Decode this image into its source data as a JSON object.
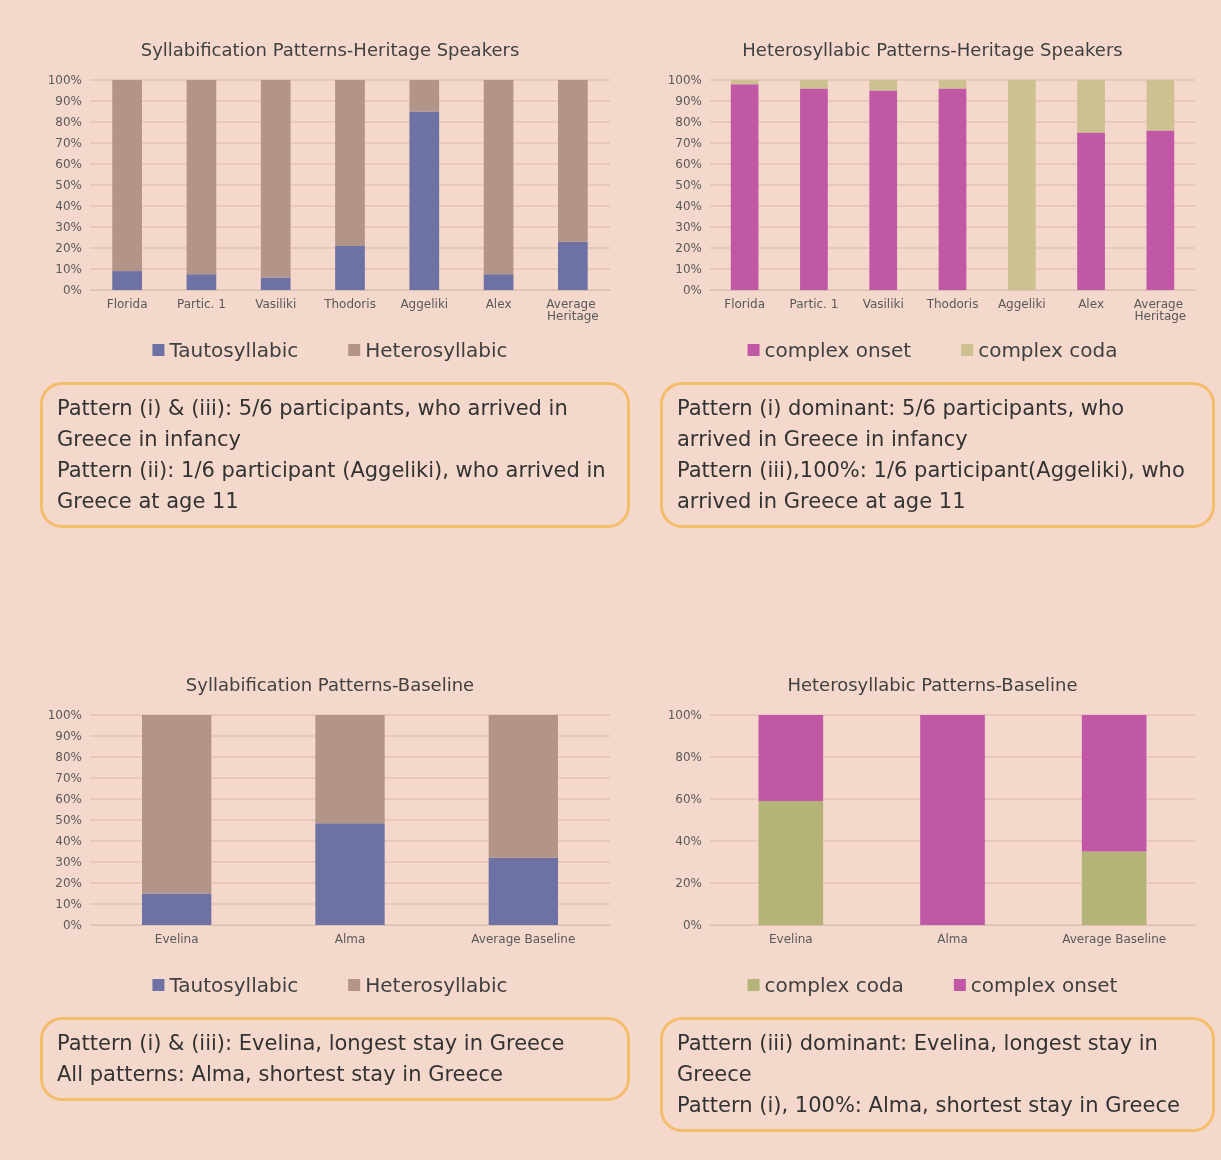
{
  "chart_data": [
    {
      "type": "bar",
      "title": "Syllabification Patterns-Heritage Speakers",
      "categories": [
        "Florida",
        "Partic. 1",
        "Vasiliki",
        "Thodoris",
        "Aggeliki",
        "Alex",
        "Average Heritage"
      ],
      "stacked": true,
      "ylim": [
        0,
        100
      ],
      "yticks": [
        {
          "value": 0,
          "label": "0%"
        },
        {
          "value": 10,
          "label": "10%"
        },
        {
          "value": 20,
          "label": "20%"
        },
        {
          "value": 30,
          "label": "30%"
        },
        {
          "value": 40,
          "label": "40%"
        },
        {
          "value": 50,
          "label": "50%"
        },
        {
          "value": 60,
          "label": "60%"
        },
        {
          "value": 70,
          "label": "70%"
        },
        {
          "value": 80,
          "label": "80%"
        },
        {
          "value": 90,
          "label": "90%"
        },
        {
          "value": 100,
          "label": "100%"
        }
      ],
      "grid": "y",
      "legend": "bottom",
      "series": [
        {
          "name": "Tautosyllabic",
          "color": "#6e71a3",
          "values": [
            9,
            7.5,
            6,
            21,
            85,
            7.5,
            23
          ]
        },
        {
          "name": "Heterosyllabic",
          "color": "#b39488",
          "values": [
            91,
            92.5,
            94,
            79,
            15,
            92.5,
            77
          ]
        }
      ],
      "annotations": [
        "Pattern (i) & (iii): 5/6 participants, who arrived in Greece in infancy",
        "Pattern (ii): 1/6 participant (Aggeliki), who arrived in Greece at age 11"
      ]
    },
    {
      "type": "bar",
      "title": "Heterosyllabic Patterns-Heritage Speakers",
      "categories": [
        "Florida",
        "Partic. 1",
        "Vasiliki",
        "Thodoris",
        "Aggeliki",
        "Alex",
        "Average Heritage"
      ],
      "stacked": true,
      "ylim": [
        0,
        100
      ],
      "yticks": [
        {
          "value": 0,
          "label": "0%"
        },
        {
          "value": 10,
          "label": "10%"
        },
        {
          "value": 20,
          "label": "20%"
        },
        {
          "value": 30,
          "label": "30%"
        },
        {
          "value": 40,
          "label": "40%"
        },
        {
          "value": 50,
          "label": "50%"
        },
        {
          "value": 60,
          "label": "60%"
        },
        {
          "value": 70,
          "label": "70%"
        },
        {
          "value": 80,
          "label": "80%"
        },
        {
          "value": 90,
          "label": "90%"
        },
        {
          "value": 100,
          "label": "100%"
        }
      ],
      "grid": "y",
      "legend": "bottom",
      "series": [
        {
          "name": "complex onset",
          "color": "#c058a6",
          "values": [
            98,
            96,
            95,
            96,
            0,
            75,
            76
          ]
        },
        {
          "name": "complex coda",
          "color": "#cdc091",
          "values": [
            2,
            4,
            5,
            4,
            100,
            25,
            24
          ]
        }
      ],
      "annotations": [
        "Pattern (i) dominant: 5/6 participants, who arrived in Greece in infancy",
        "Pattern (iii),100%: 1/6 participant(Aggeliki), who arrived in Greece at age 11"
      ]
    },
    {
      "type": "bar",
      "title": "Syllabification Patterns-Baseline",
      "categories": [
        "Evelina",
        "Alma",
        "Average Baseline"
      ],
      "stacked": true,
      "ylim": [
        0,
        100
      ],
      "yticks": [
        {
          "value": 0,
          "label": "0%"
        },
        {
          "value": 10,
          "label": "10%"
        },
        {
          "value": 20,
          "label": "20%"
        },
        {
          "value": 30,
          "label": "30%"
        },
        {
          "value": 40,
          "label": "40%"
        },
        {
          "value": 50,
          "label": "50%"
        },
        {
          "value": 60,
          "label": "60%"
        },
        {
          "value": 70,
          "label": "70%"
        },
        {
          "value": 80,
          "label": "80%"
        },
        {
          "value": 90,
          "label": "90%"
        },
        {
          "value": 100,
          "label": "100%"
        }
      ],
      "grid": "y",
      "legend": "bottom",
      "series": [
        {
          "name": "Tautosyllabic",
          "color": "#6e71a3",
          "values": [
            15,
            48.5,
            32
          ]
        },
        {
          "name": "Heterosyllabic",
          "color": "#b39488",
          "values": [
            85,
            51.5,
            68
          ]
        }
      ],
      "annotations": [
        "Pattern (i) & (iii): Evelina,  longest stay in Greece",
        "All patterns: Alma, shortest stay in Greece"
      ]
    },
    {
      "type": "bar",
      "title": "Heterosyllabic Patterns-Baseline",
      "categories": [
        "Evelina",
        "Alma",
        "Average Baseline"
      ],
      "stacked": true,
      "ylim": [
        0,
        100
      ],
      "yticks": [
        {
          "value": 0,
          "label": "0%"
        },
        {
          "value": 20,
          "label": "20%"
        },
        {
          "value": 40,
          "label": "40%"
        },
        {
          "value": 60,
          "label": "60%"
        },
        {
          "value": 80,
          "label": "80%"
        },
        {
          "value": 100,
          "label": "100%"
        }
      ],
      "grid": "y",
      "legend": "bottom",
      "series": [
        {
          "name": "complex coda",
          "color": "#b5b478",
          "values": [
            59,
            0,
            35
          ]
        },
        {
          "name": "complex onset",
          "color": "#c058a6",
          "values": [
            41,
            100,
            65
          ]
        }
      ],
      "annotations": [
        "Pattern (iii) dominant: Evelina, longest stay in Greece",
        "Pattern (i), 100%: Alma, shortest stay in Greece"
      ]
    }
  ]
}
